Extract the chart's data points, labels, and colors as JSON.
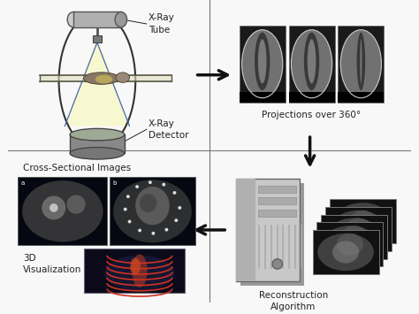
{
  "bg_color": "#f8f8f8",
  "divider_color": "#777777",
  "arrow_color": "#111111",
  "text_color": "#222222",
  "label_xray_tube": "X-Ray\nTube",
  "label_xray_detector": "X-Ray\nDetector",
  "label_projections": "Projections over 360°",
  "label_cross_sectional": "Cross-Sectional Images",
  "label_3d": "3D\nVisualization",
  "label_reconstruction": "Reconstruction\nAlgorithm",
  "fig_width": 4.74,
  "fig_height": 3.55,
  "dpi": 100
}
